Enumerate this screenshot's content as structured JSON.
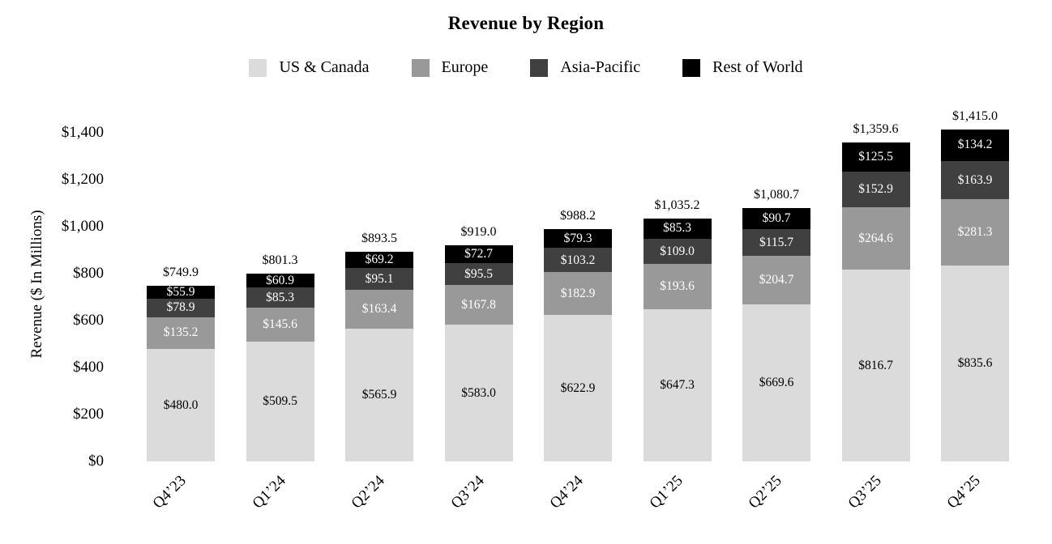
{
  "chart_data": {
    "type": "bar",
    "stacked": true,
    "title": "Revenue by Region",
    "ylabel": "Revenue ($ In Millions)",
    "xlabel": "",
    "ylim": [
      0,
      1400
    ],
    "grid": false,
    "legend_position": "top-center",
    "value_prefix": "$",
    "yticks": [
      "$0",
      "$200",
      "$400",
      "$600",
      "$800",
      "$1,000",
      "$1,200",
      "$1,400"
    ],
    "ytick_values": [
      0,
      200,
      400,
      600,
      800,
      1000,
      1200,
      1400
    ],
    "categories": [
      "Q4’23",
      "Q1’24",
      "Q2’24",
      "Q3’24",
      "Q4’24",
      "Q1’25",
      "Q2’25",
      "Q3’25",
      "Q4’25"
    ],
    "series": [
      {
        "name": "US & Canada",
        "color": "#dbdbdb",
        "label_color": "#000000",
        "values": [
          480.0,
          509.5,
          565.9,
          583.0,
          622.9,
          647.3,
          669.6,
          816.7,
          835.6
        ]
      },
      {
        "name": "Europe",
        "color": "#999999",
        "label_color": "#ffffff",
        "values": [
          135.2,
          145.6,
          163.4,
          167.8,
          182.9,
          193.6,
          204.7,
          264.6,
          281.3
        ]
      },
      {
        "name": "Asia-Pacific",
        "color": "#404040",
        "label_color": "#ffffff",
        "values": [
          78.9,
          85.3,
          95.1,
          95.5,
          103.2,
          109.0,
          115.7,
          152.9,
          163.9
        ]
      },
      {
        "name": "Rest of World",
        "color": "#000000",
        "label_color": "#ffffff",
        "values": [
          55.9,
          60.9,
          69.2,
          72.7,
          79.3,
          85.3,
          90.7,
          125.5,
          134.2
        ]
      }
    ],
    "totals": [
      749.9,
      801.3,
      893.5,
      919.0,
      988.2,
      1035.2,
      1080.7,
      1359.6,
      1415.0
    ]
  }
}
